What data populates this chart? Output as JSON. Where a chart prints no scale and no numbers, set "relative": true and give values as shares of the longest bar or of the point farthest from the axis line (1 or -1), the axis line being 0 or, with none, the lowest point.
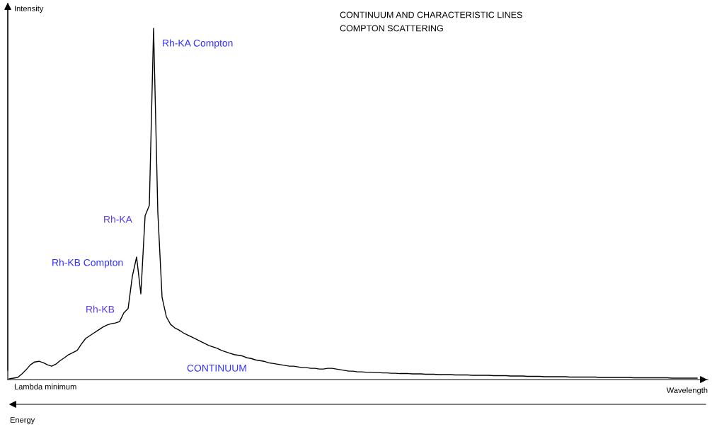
{
  "chart_data": {
    "type": "line",
    "relative": true,
    "title": "CONTINUUM AND CHARACTERISTIC LINES",
    "subtitle": "COMPTON SCATTERING",
    "xlabel": "Wavelength",
    "ylabel": "Intensity",
    "annotations": [
      "Rh-KA Compton",
      "Rh-KA",
      "Rh-KB Compton",
      "Rh-KB",
      "CONTINUUM",
      "Lambda minimum",
      "Energy"
    ],
    "categories": [
      null,
      null,
      null,
      null,
      null,
      null,
      null,
      null,
      null,
      null,
      null,
      null,
      null,
      null,
      null,
      null,
      null,
      null,
      null,
      null,
      null,
      null,
      null,
      null,
      null,
      null,
      null,
      null,
      null,
      null,
      null,
      null,
      null,
      null,
      null,
      null,
      null,
      null,
      null,
      null,
      null,
      null,
      null,
      null,
      null,
      null,
      null,
      null,
      null,
      null,
      null,
      null,
      null,
      null,
      null,
      null,
      null,
      null,
      null,
      null,
      null,
      null,
      null,
      null,
      null,
      null,
      null,
      null,
      null,
      null,
      null,
      null,
      null,
      null,
      null,
      null,
      null,
      null,
      null,
      null,
      null,
      null,
      null,
      null,
      null,
      null,
      null,
      null,
      null,
      null,
      null,
      null,
      null,
      null,
      null,
      null,
      null,
      null,
      null,
      null,
      null,
      null,
      null,
      null,
      null,
      null,
      null,
      null,
      null,
      null,
      null,
      null,
      null,
      null,
      null,
      null,
      null,
      null,
      null,
      null,
      null,
      null,
      null,
      null,
      null,
      null,
      null,
      null,
      null,
      null,
      null,
      null,
      null,
      null,
      null,
      null,
      null,
      null,
      null,
      null,
      null,
      null,
      null,
      null,
      null,
      null,
      null,
      null,
      null,
      null,
      null,
      null,
      null,
      null,
      null,
      null,
      null,
      null,
      null,
      null,
      null,
      null,
      null
    ],
    "series": [
      {
        "color": "#000000",
        "values": [
          0.002,
          0.004,
          0.006,
          0.016,
          0.028,
          0.042,
          0.05,
          0.052,
          0.048,
          0.042,
          0.038,
          0.044,
          0.054,
          0.062,
          0.071,
          0.077,
          0.083,
          0.101,
          0.117,
          0.125,
          0.133,
          0.141,
          0.149,
          0.155,
          0.159,
          0.161,
          0.165,
          0.19,
          0.202,
          0.294,
          0.349,
          0.244,
          0.466,
          0.496,
          1,
          0.476,
          0.234,
          0.179,
          0.157,
          0.147,
          0.141,
          0.133,
          0.127,
          0.121,
          0.115,
          0.109,
          0.103,
          0.097,
          0.093,
          0.089,
          0.083,
          0.079,
          0.075,
          0.071,
          0.069,
          0.067,
          0.062,
          0.06,
          0.056,
          0.054,
          0.052,
          0.048,
          0.046,
          0.044,
          0.042,
          0.04,
          0.038,
          0.038,
          0.036,
          0.034,
          0.034,
          0.032,
          0.032,
          0.03,
          0.03,
          0.032,
          0.032,
          0.03,
          0.028,
          0.026,
          0.024,
          0.024,
          0.022,
          0.022,
          0.021,
          0.021,
          0.02,
          0.02,
          0.019,
          0.019,
          0.018,
          0.018,
          0.017,
          0.017,
          0.017,
          0.016,
          0.016,
          0.016,
          0.015,
          0.015,
          0.015,
          0.014,
          0.014,
          0.014,
          0.014,
          0.013,
          0.013,
          0.013,
          0.013,
          0.012,
          0.012,
          0.012,
          0.012,
          0.012,
          0.011,
          0.011,
          0.011,
          0.011,
          0.01,
          0.01,
          0.01,
          0.01,
          0.009,
          0.009,
          0.009,
          0.009,
          0.008,
          0.008,
          0.008,
          0.008,
          0.008,
          0.008,
          0.007,
          0.007,
          0.007,
          0.007,
          0.007,
          0.007,
          0.007,
          0.006,
          0.006,
          0.006,
          0.006,
          0.006,
          0.006,
          0.006,
          0.006,
          0.005,
          0.005,
          0.005,
          0.005,
          0.005,
          0.005,
          0.005,
          0.005,
          0.005,
          0.004,
          0.004,
          0.004,
          0.004,
          0.004,
          0.004,
          0.004
        ]
      }
    ]
  }
}
